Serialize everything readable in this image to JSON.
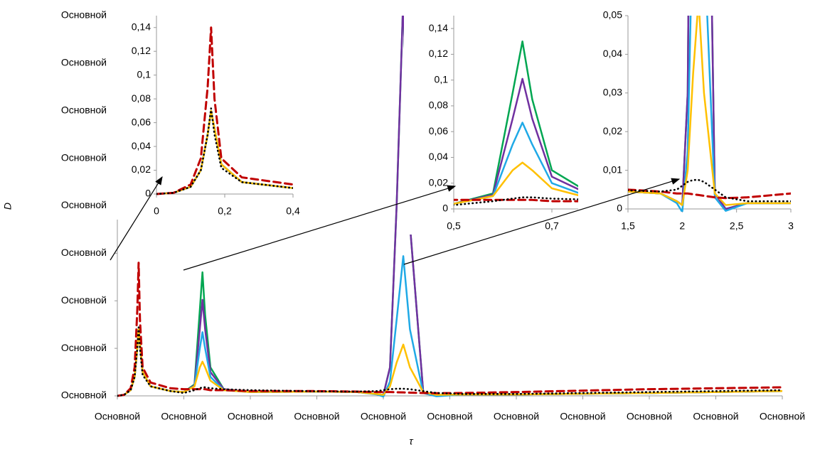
{
  "chart_data": [
    {
      "type": "line",
      "xlabel": "τ",
      "ylabel": "D",
      "x": [
        0,
        0.05,
        0.1,
        0.13,
        0.15,
        0.16,
        0.17,
        0.19,
        0.25,
        0.4,
        0.5,
        0.58,
        0.62,
        0.64,
        0.66,
        0.7,
        0.8,
        1.0,
        1.5,
        1.8,
        1.95,
        2.0,
        2.05,
        2.1,
        2.15,
        2.2,
        2.3,
        2.4,
        2.6,
        3.0,
        4.0,
        5.0
      ],
      "series": [
        {
          "color": "#00a651",
          "style": "solid",
          "values": [
            0,
            0.001,
            0.006,
            0.02,
            0.05,
            0.07,
            0.055,
            0.025,
            0.01,
            0.005,
            0.004,
            0.012,
            0.09,
            0.13,
            0.085,
            0.03,
            0.007,
            0.004,
            0.0045,
            0.004,
            0.002,
            0.001,
            0.03,
            0.2,
            0.42,
            0.18,
            0.004,
            0,
            0.0015,
            0.0015,
            0.003,
            0.005
          ]
        },
        {
          "color": "#7030a0",
          "style": "solid",
          "values": [
            0,
            0.001,
            0.006,
            0.02,
            0.05,
            0.07,
            0.055,
            0.025,
            0.01,
            0.005,
            0.004,
            0.011,
            0.07,
            0.101,
            0.07,
            0.025,
            0.007,
            0.004,
            0.0045,
            0.004,
            0.002,
            0.001,
            0.03,
            0.2,
            0.42,
            0.18,
            0.004,
            0,
            0.0015,
            0.0015,
            0.003,
            0.005
          ]
        },
        {
          "color": "#1fa9e6",
          "style": "solid",
          "values": [
            0,
            0.001,
            0.006,
            0.02,
            0.05,
            0.07,
            0.055,
            0.025,
            0.01,
            0.005,
            0.004,
            0.01,
            0.05,
            0.067,
            0.05,
            0.02,
            0.006,
            0.004,
            0.0045,
            0.004,
            0.0015,
            -0.0008,
            0.015,
            0.08,
            0.147,
            0.07,
            0.003,
            -0.0005,
            0.0015,
            0.0015,
            0.003,
            0.005
          ]
        },
        {
          "color": "#ffc000",
          "style": "solid",
          "values": [
            0,
            0.001,
            0.006,
            0.02,
            0.05,
            0.07,
            0.055,
            0.025,
            0.01,
            0.005,
            0.004,
            0.01,
            0.03,
            0.036,
            0.03,
            0.016,
            0.006,
            0.004,
            0.0045,
            0.004,
            0.002,
            0.001,
            0.01,
            0.035,
            0.054,
            0.03,
            0.004,
            0.001,
            0.0015,
            0.0015,
            0.003,
            0.005
          ]
        },
        {
          "color": "#c00000",
          "style": "dashed",
          "values": [
            0,
            0.001,
            0.008,
            0.03,
            0.09,
            0.14,
            0.08,
            0.03,
            0.014,
            0.008,
            0.007,
            0.007,
            0.007,
            0.007,
            0.007,
            0.006,
            0.006,
            0.005,
            0.005,
            0.0045,
            0.004,
            0.004,
            0.004,
            0.0038,
            0.0036,
            0.0034,
            0.003,
            0.0028,
            0.003,
            0.004,
            0.007,
            0.009
          ]
        },
        {
          "color": "#000000",
          "style": "dotted",
          "values": [
            0,
            0.001,
            0.006,
            0.02,
            0.05,
            0.072,
            0.05,
            0.022,
            0.01,
            0.005,
            0.003,
            0.006,
            0.008,
            0.009,
            0.009,
            0.008,
            0.007,
            0.006,
            0.0048,
            0.0045,
            0.005,
            0.006,
            0.007,
            0.0075,
            0.0075,
            0.007,
            0.005,
            0.003,
            0.002,
            0.002,
            0.004,
            0.006
          ]
        }
      ],
      "xlim": [
        0,
        5
      ],
      "xticks": [
        {
          "value": 0,
          "label": "Основной"
        },
        {
          "value": 0.5,
          "label": "Основной"
        },
        {
          "value": 1,
          "label": "Основной"
        },
        {
          "value": 1.5,
          "label": "Основной"
        },
        {
          "value": 2,
          "label": "Основной"
        },
        {
          "value": 2.5,
          "label": "Основной"
        },
        {
          "value": 3,
          "label": "Основной"
        },
        {
          "value": 3.5,
          "label": "Основной"
        },
        {
          "value": 4,
          "label": "Основной"
        },
        {
          "value": 4.5,
          "label": "Основной"
        },
        {
          "value": 5,
          "label": "Основной"
        }
      ],
      "ylim": [
        0,
        0.4
      ],
      "yticks": [
        {
          "value": 0,
          "label": "Основной"
        },
        {
          "value": 0.05,
          "label": "Основной"
        },
        {
          "value": 0.1,
          "label": "Основной"
        },
        {
          "value": 0.15,
          "label": "Основной"
        },
        {
          "value": 0.2,
          "label": "Основной"
        },
        {
          "value": 0.25,
          "label": "Основной"
        },
        {
          "value": 0.3,
          "label": "Основной"
        },
        {
          "value": 0.35,
          "label": "Основной"
        },
        {
          "value": 0.4,
          "label": "Основной"
        }
      ]
    },
    {
      "type": "inset",
      "xlim": [
        0,
        0.4
      ],
      "xticks": [
        0,
        {
          "value": 0.2,
          "label": "0,2"
        },
        {
          "value": 0.4,
          "label": "0,4"
        }
      ],
      "ylim": [
        0,
        0.15
      ],
      "yticks": [
        0,
        {
          "value": 0.02,
          "label": "0,02"
        },
        {
          "value": 0.04,
          "label": "0,04"
        },
        {
          "value": 0.06,
          "label": "0,06"
        },
        {
          "value": 0.08,
          "label": "0,08"
        },
        {
          "value": 0.1,
          "label": "0,1"
        },
        {
          "value": 0.12,
          "label": "0,12"
        },
        {
          "value": 0.14,
          "label": "0,14"
        }
      ]
    },
    {
      "type": "inset",
      "xlim": [
        0.5,
        0.8
      ],
      "xticks": [
        {
          "value": 0.5,
          "label": "0,5"
        },
        {
          "value": 0.7,
          "label": "0,7"
        }
      ],
      "ylim": [
        0,
        0.15
      ],
      "yticks": [
        0,
        {
          "value": 0.02,
          "label": "0,02"
        },
        {
          "value": 0.04,
          "label": "0,04"
        },
        {
          "value": 0.06,
          "label": "0,06"
        },
        {
          "value": 0.08,
          "label": "0,08"
        },
        {
          "value": 0.1,
          "label": "0,1"
        },
        {
          "value": 0.12,
          "label": "0,12"
        },
        {
          "value": 0.14,
          "label": "0,14"
        }
      ]
    },
    {
      "type": "inset",
      "xlim": [
        1.5,
        3
      ],
      "xticks": [
        {
          "value": 1.5,
          "label": "1,5"
        },
        2,
        {
          "value": 2.5,
          "label": "2,5"
        },
        3
      ],
      "ylim": [
        0,
        0.05
      ],
      "yticks": [
        0,
        {
          "value": 0.01,
          "label": "0,01"
        },
        {
          "value": 0.02,
          "label": "0,02"
        },
        {
          "value": 0.03,
          "label": "0,03"
        },
        {
          "value": 0.04,
          "label": "0,04"
        },
        {
          "value": 0.05,
          "label": "0,05"
        }
      ]
    }
  ]
}
